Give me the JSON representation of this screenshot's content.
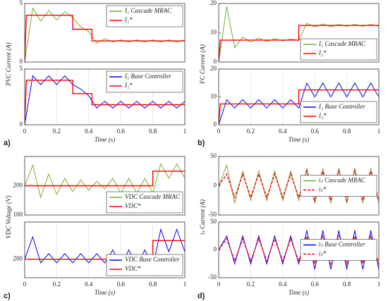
{
  "panels": [
    {
      "label": "a)",
      "ylabel": "PVC Current (A)",
      "xlabel": "Time (s)"
    },
    {
      "label": "b)",
      "ylabel": "FC Current (A)",
      "xlabel": "Time (s)"
    },
    {
      "label": "c)",
      "ylabel": "VDC Voltage (V)",
      "xlabel": "Time (s)"
    },
    {
      "label": "d)",
      "ylabel": "iₛ Current (A)",
      "xlabel": "Time (s)"
    }
  ],
  "chart_data": [
    {
      "type": "line",
      "x": [
        0,
        0.05,
        0.1,
        0.15,
        0.2,
        0.25,
        0.3,
        0.35,
        0.4,
        0.45,
        0.5,
        0.55,
        0.6,
        0.65,
        0.7,
        0.75,
        0.8,
        0.85,
        0.9,
        0.95,
        1
      ],
      "xlim": [
        0,
        1
      ],
      "ylim": [
        0,
        5
      ],
      "yticks": [
        0,
        5
      ],
      "legend": "upper right",
      "series": [
        {
          "name": "I₁ Cascade MRAC",
          "color": "#77ac30",
          "values": [
            0,
            4.6,
            3.5,
            4.4,
            3.6,
            4.3,
            3.8,
            3.0,
            2.6,
            1.6,
            2.0,
            1.7,
            1.9,
            1.7,
            1.9,
            1.7,
            1.9,
            1.7,
            1.9,
            1.7,
            1.9
          ]
        },
        {
          "name": "I₁*",
          "color": "#ff0000",
          "x": [
            0,
            0.01,
            0.3,
            0.3,
            0.42,
            0.42,
            1
          ],
          "values": [
            0,
            4,
            4,
            2.8,
            2.8,
            1.8,
            1.8
          ]
        }
      ]
    },
    {
      "type": "line",
      "x": [
        0,
        0.05,
        0.1,
        0.15,
        0.2,
        0.25,
        0.3,
        0.35,
        0.4,
        0.45,
        0.5,
        0.55,
        0.6,
        0.65,
        0.7,
        0.75,
        0.8,
        0.85,
        0.9,
        0.95,
        1
      ],
      "xlim": [
        0,
        1
      ],
      "xticks": [
        0,
        0.2,
        0.4,
        0.6,
        0.8,
        1
      ],
      "ylim": [
        0,
        5
      ],
      "yticks": [
        0,
        5
      ],
      "grid": true,
      "legend": "upper right",
      "series": [
        {
          "name": "I₁ Base Controller",
          "color": "#0000ff",
          "values": [
            0,
            4.4,
            3.6,
            4.4,
            3.6,
            4.4,
            3.6,
            3.2,
            2.6,
            1.5,
            2.1,
            1.5,
            2.1,
            1.5,
            2.1,
            1.5,
            2.1,
            1.5,
            2.1,
            1.5,
            2.1
          ]
        },
        {
          "name": "I₁*",
          "color": "#ff0000",
          "x": [
            0,
            0.01,
            0.3,
            0.3,
            0.42,
            0.42,
            1
          ],
          "values": [
            0,
            4,
            4,
            2.8,
            2.8,
            1.8,
            1.8
          ]
        }
      ]
    },
    {
      "type": "line",
      "x": [
        0,
        0.05,
        0.1,
        0.15,
        0.2,
        0.25,
        0.3,
        0.35,
        0.4,
        0.45,
        0.5,
        0.55,
        0.6,
        0.65,
        0.7,
        0.75,
        0.8,
        0.85,
        0.9,
        0.95,
        1
      ],
      "xlim": [
        0,
        1
      ],
      "ylim": [
        0,
        20
      ],
      "yticks": [
        0,
        10,
        20
      ],
      "legend": "lower right",
      "series": [
        {
          "name": "I₂ Cascade MRAC",
          "color": "#77ac30",
          "values": [
            0,
            19,
            5,
            8.5,
            6.8,
            8.2,
            7.0,
            8.0,
            7.2,
            7.9,
            7.4,
            13.2,
            12.0,
            13.0,
            12.1,
            12.9,
            12.2,
            12.9,
            12.2,
            12.9,
            12.2
          ]
        },
        {
          "name": "I₂*",
          "color": "#ff0000",
          "x": [
            0,
            0.01,
            0.5,
            0.5,
            1
          ],
          "values": [
            0,
            7.5,
            7.5,
            12.5,
            12.5
          ]
        }
      ]
    },
    {
      "type": "line",
      "x": [
        0,
        0.05,
        0.1,
        0.15,
        0.2,
        0.25,
        0.3,
        0.35,
        0.4,
        0.45,
        0.5,
        0.55,
        0.6,
        0.65,
        0.7,
        0.75,
        0.8,
        0.85,
        0.9,
        0.95,
        1
      ],
      "xlim": [
        0,
        1
      ],
      "xticks": [
        0,
        0.2,
        0.4,
        0.6,
        0.8,
        1
      ],
      "ylim": [
        0,
        20
      ],
      "yticks": [
        0,
        10,
        20
      ],
      "grid": true,
      "legend": "lower right",
      "series": [
        {
          "name": "I₂ Base Controller",
          "color": "#0000ff",
          "values": [
            0,
            9,
            6,
            9,
            6,
            9,
            6,
            9,
            6,
            9,
            6,
            15,
            10,
            15,
            10,
            15,
            10,
            15,
            10,
            15,
            10
          ]
        },
        {
          "name": "I₂*",
          "color": "#ff0000",
          "x": [
            0,
            0.01,
            0.5,
            0.5,
            1
          ],
          "values": [
            0,
            7.5,
            7.5,
            12.5,
            12.5
          ]
        }
      ]
    },
    {
      "type": "line",
      "x": [
        0,
        0.05,
        0.1,
        0.15,
        0.2,
        0.25,
        0.3,
        0.35,
        0.4,
        0.45,
        0.5,
        0.55,
        0.6,
        0.65,
        0.7,
        0.75,
        0.8,
        0.85,
        0.9,
        0.95,
        1
      ],
      "xlim": [
        0,
        1
      ],
      "ylim": [
        100,
        300
      ],
      "yticks": [
        100,
        200
      ],
      "legend": "lower right",
      "series": [
        {
          "name": "VDC Cascade MRAC",
          "color": "#77ac30",
          "values": [
            200,
            270,
            160,
            240,
            170,
            225,
            180,
            220,
            185,
            215,
            190,
            225,
            175,
            225,
            175,
            225,
            175,
            275,
            225,
            275,
            225
          ]
        },
        {
          "name": "VDC*",
          "color": "#ff0000",
          "x": [
            0,
            0.8,
            0.8,
            1
          ],
          "values": [
            200,
            200,
            250,
            250
          ]
        }
      ]
    },
    {
      "type": "line",
      "x": [
        0,
        0.05,
        0.1,
        0.15,
        0.2,
        0.25,
        0.3,
        0.35,
        0.4,
        0.45,
        0.5,
        0.55,
        0.6,
        0.65,
        0.7,
        0.75,
        0.8,
        0.85,
        0.9,
        0.95,
        1
      ],
      "xlim": [
        0,
        1
      ],
      "xticks": [
        0,
        0.2,
        0.4,
        0.6,
        0.8,
        1
      ],
      "ylim": [
        150,
        300
      ],
      "yticks": [
        200
      ],
      "grid": true,
      "legend": "lower right",
      "series": [
        {
          "name": "VDC Base Controller",
          "color": "#0000ff",
          "values": [
            200,
            260,
            190,
            215,
            190,
            215,
            190,
            215,
            190,
            215,
            190,
            225,
            180,
            225,
            180,
            225,
            180,
            280,
            220,
            280,
            220
          ]
        },
        {
          "name": "VDC*",
          "color": "#ff0000",
          "x": [
            0,
            0.8,
            0.8,
            1
          ],
          "values": [
            200,
            200,
            250,
            250
          ]
        }
      ]
    },
    {
      "type": "line",
      "x": [
        0,
        0.05,
        0.1,
        0.15,
        0.2,
        0.25,
        0.3,
        0.35,
        0.4,
        0.45,
        0.5,
        0.55,
        0.6,
        0.65,
        0.7,
        0.75,
        0.8,
        0.85,
        0.9,
        0.95,
        1
      ],
      "xlim": [
        0,
        1
      ],
      "ylim": [
        -50,
        50
      ],
      "yticks": [
        -50,
        0,
        50
      ],
      "legend": "center right",
      "series": [
        {
          "name": "iₛ Cascade MRAC",
          "color": "#77ac30",
          "values": [
            0,
            35,
            -30,
            25,
            -25,
            25,
            -25,
            25,
            -25,
            25,
            -25,
            30,
            -30,
            30,
            -30,
            30,
            -30,
            30,
            -30,
            30,
            -30
          ]
        },
        {
          "name": "iₛ*",
          "color": "#ff0000",
          "style": "dashed",
          "values": [
            0,
            20,
            -20,
            20,
            -20,
            20,
            -20,
            20,
            -20,
            20,
            -20,
            25,
            -25,
            25,
            -25,
            25,
            -25,
            25,
            -25,
            25,
            -25
          ]
        }
      ]
    },
    {
      "type": "line",
      "x": [
        0,
        0.05,
        0.1,
        0.15,
        0.2,
        0.25,
        0.3,
        0.35,
        0.4,
        0.45,
        0.5,
        0.55,
        0.6,
        0.65,
        0.7,
        0.75,
        0.8,
        0.85,
        0.9,
        0.95,
        1
      ],
      "xlim": [
        0,
        1
      ],
      "xticks": [
        0,
        0.2,
        0.4,
        0.6,
        0.8,
        1
      ],
      "ylim": [
        -50,
        50
      ],
      "yticks": [
        -50,
        0,
        50
      ],
      "grid": true,
      "legend": "center right",
      "series": [
        {
          "name": "iₛ Base Controller",
          "color": "#0000ff",
          "values": [
            0,
            25,
            -25,
            25,
            -25,
            25,
            -25,
            25,
            -25,
            25,
            -25,
            35,
            -35,
            35,
            -35,
            35,
            -35,
            35,
            -35,
            35,
            -35
          ]
        },
        {
          "name": "iₛ*",
          "color": "#ff0000",
          "style": "dashed",
          "values": [
            0,
            20,
            -20,
            20,
            -20,
            20,
            -20,
            20,
            -20,
            20,
            -20,
            25,
            -25,
            25,
            -25,
            25,
            -25,
            25,
            -25,
            25,
            -25
          ]
        }
      ]
    }
  ]
}
